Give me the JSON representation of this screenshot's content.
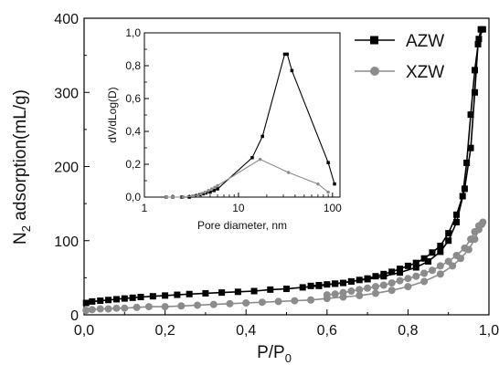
{
  "chart_data": [
    {
      "type": "scatter",
      "xlabel_main": "P/P",
      "xlabel_sub": "0",
      "ylabel_pre": "N",
      "ylabel_sub": "2",
      "ylabel_post": " adsorption(mL/g)",
      "xlim": [
        0,
        1.0
      ],
      "ylim": [
        0,
        400
      ],
      "xticks": [
        0.0,
        0.2,
        0.4,
        0.6,
        0.8,
        1.0
      ],
      "xticklabels": [
        "0,0",
        "0,2",
        "0,4",
        "0,6",
        "0,8",
        "1,0"
      ],
      "yticks": [
        0,
        100,
        200,
        300,
        400
      ],
      "yticklabels": [
        "0",
        "100",
        "200",
        "300",
        "400"
      ],
      "legend_position": "top-right",
      "series": [
        {
          "name": "AZW",
          "color": "#000000",
          "marker": "square",
          "adsorption": [
            [
              0.005,
              16
            ],
            [
              0.02,
              18
            ],
            [
              0.04,
              19
            ],
            [
              0.06,
              20
            ],
            [
              0.08,
              21
            ],
            [
              0.1,
              22
            ],
            [
              0.12,
              23
            ],
            [
              0.14,
              24
            ],
            [
              0.17,
              25
            ],
            [
              0.2,
              26
            ],
            [
              0.23,
              27
            ],
            [
              0.26,
              28
            ],
            [
              0.3,
              29
            ],
            [
              0.34,
              30
            ],
            [
              0.38,
              31
            ],
            [
              0.42,
              32
            ],
            [
              0.46,
              34
            ],
            [
              0.5,
              35
            ],
            [
              0.54,
              37
            ],
            [
              0.58,
              39
            ],
            [
              0.62,
              42
            ],
            [
              0.66,
              45
            ],
            [
              0.7,
              48
            ],
            [
              0.74,
              52
            ],
            [
              0.78,
              57
            ],
            [
              0.82,
              64
            ],
            [
              0.85,
              72
            ],
            [
              0.88,
              85
            ],
            [
              0.9,
              100
            ],
            [
              0.92,
              125
            ],
            [
              0.94,
              170
            ],
            [
              0.955,
              225
            ],
            [
              0.965,
              300
            ],
            [
              0.973,
              365
            ],
            [
              0.98,
              385
            ]
          ],
          "desorption": [
            [
              0.985,
              385
            ],
            [
              0.975,
              372
            ],
            [
              0.965,
              330
            ],
            [
              0.955,
              270
            ],
            [
              0.945,
              205
            ],
            [
              0.935,
              160
            ],
            [
              0.92,
              135
            ],
            [
              0.9,
              110
            ],
            [
              0.88,
              93
            ],
            [
              0.86,
              84
            ],
            [
              0.84,
              76
            ],
            [
              0.82,
              70
            ],
            [
              0.8,
              66
            ],
            [
              0.78,
              62
            ],
            [
              0.76,
              58
            ],
            [
              0.74,
              55
            ],
            [
              0.72,
              52
            ],
            [
              0.7,
              49
            ],
            [
              0.68,
              47
            ],
            [
              0.66,
              45
            ],
            [
              0.64,
              43
            ],
            [
              0.62,
              42
            ],
            [
              0.6,
              41
            ],
            [
              0.58,
              40
            ],
            [
              0.56,
              39
            ]
          ]
        },
        {
          "name": "XZW",
          "color": "#8c8c8c",
          "marker": "circle",
          "adsorption": [
            [
              0.005,
              6
            ],
            [
              0.02,
              7
            ],
            [
              0.04,
              8
            ],
            [
              0.06,
              8
            ],
            [
              0.08,
              9
            ],
            [
              0.1,
              9
            ],
            [
              0.13,
              10
            ],
            [
              0.16,
              11
            ],
            [
              0.2,
              11
            ],
            [
              0.24,
              12
            ],
            [
              0.28,
              13
            ],
            [
              0.32,
              14
            ],
            [
              0.36,
              15
            ],
            [
              0.4,
              16
            ],
            [
              0.44,
              17
            ],
            [
              0.48,
              18
            ],
            [
              0.52,
              19
            ],
            [
              0.56,
              20
            ],
            [
              0.6,
              22
            ],
            [
              0.64,
              24
            ],
            [
              0.68,
              26
            ],
            [
              0.72,
              29
            ],
            [
              0.76,
              33
            ],
            [
              0.8,
              38
            ],
            [
              0.84,
              45
            ],
            [
              0.88,
              55
            ],
            [
              0.91,
              66
            ],
            [
              0.93,
              76
            ],
            [
              0.95,
              88
            ],
            [
              0.965,
              102
            ],
            [
              0.975,
              115
            ],
            [
              0.982,
              122
            ]
          ],
          "desorption": [
            [
              0.985,
              125
            ],
            [
              0.975,
              120
            ],
            [
              0.965,
              112
            ],
            [
              0.955,
              102
            ],
            [
              0.94,
              90
            ],
            [
              0.92,
              80
            ],
            [
              0.9,
              72
            ],
            [
              0.88,
              66
            ],
            [
              0.86,
              60
            ],
            [
              0.84,
              56
            ],
            [
              0.82,
              52
            ],
            [
              0.8,
              49
            ],
            [
              0.78,
              46
            ],
            [
              0.76,
              43
            ],
            [
              0.74,
              40
            ],
            [
              0.72,
              38
            ],
            [
              0.7,
              36
            ],
            [
              0.68,
              34
            ],
            [
              0.66,
              32
            ],
            [
              0.64,
              30
            ],
            [
              0.62,
              28
            ],
            [
              0.6,
              27
            ]
          ]
        }
      ]
    },
    {
      "type": "line",
      "xscale": "log",
      "xlabel": "Pore diameter, nm",
      "ylabel": "dV/dLog(D)",
      "xlim": [
        1,
        120
      ],
      "ylim": [
        0,
        1.0
      ],
      "xticks": [
        1,
        10,
        100
      ],
      "xticklabels": [
        "1",
        "10",
        "100"
      ],
      "yticks": [
        0,
        0.2,
        0.4,
        0.6,
        0.8,
        1.0
      ],
      "yticklabels": [
        "0,0",
        "0,2",
        "0,4",
        "0,6",
        "0,8",
        "1,0"
      ],
      "series": [
        {
          "name": "AZW",
          "color": "#000000",
          "marker": "square",
          "points": [
            [
              1.7,
              0.0
            ],
            [
              2.0,
              0.0
            ],
            [
              2.5,
              0.0
            ],
            [
              3.0,
              0.0
            ],
            [
              3.3,
              0.005
            ],
            [
              3.6,
              0.01
            ],
            [
              3.9,
              0.015
            ],
            [
              4.2,
              0.02
            ],
            [
              4.5,
              0.025
            ],
            [
              5.0,
              0.03
            ],
            [
              5.5,
              0.04
            ],
            [
              6.0,
              0.05
            ],
            [
              14,
              0.24
            ],
            [
              18,
              0.37
            ],
            [
              31,
              0.87
            ],
            [
              33,
              0.87
            ],
            [
              37,
              0.77
            ],
            [
              90,
              0.21
            ],
            [
              105,
              0.08
            ]
          ]
        },
        {
          "name": "XZW",
          "color": "#8c8c8c",
          "marker": "circle",
          "points": [
            [
              1.7,
              0.0
            ],
            [
              2.0,
              0.0
            ],
            [
              2.6,
              0.0
            ],
            [
              3.3,
              0.005
            ],
            [
              3.7,
              0.01
            ],
            [
              4.0,
              0.02
            ],
            [
              4.4,
              0.03
            ],
            [
              4.8,
              0.04
            ],
            [
              5.2,
              0.05
            ],
            [
              5.6,
              0.06
            ],
            [
              6.0,
              0.07
            ],
            [
              17,
              0.23
            ],
            [
              34,
              0.15
            ],
            [
              70,
              0.08
            ],
            [
              90,
              0.03
            ]
          ]
        }
      ]
    }
  ]
}
